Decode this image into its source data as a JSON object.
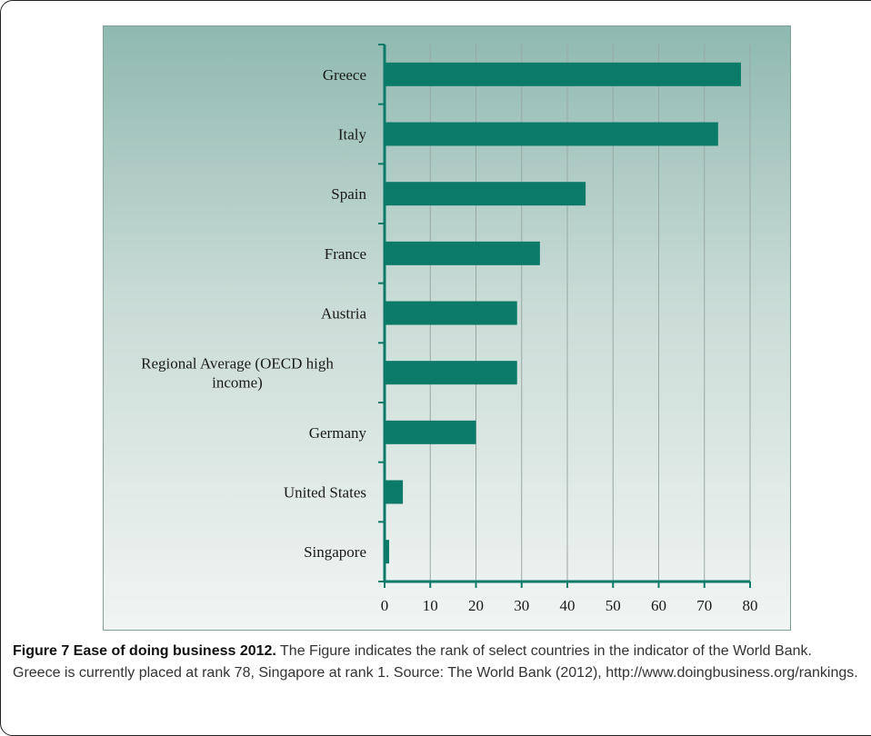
{
  "chart_data": {
    "type": "bar",
    "orientation": "horizontal",
    "categories": [
      "Greece",
      "Italy",
      "Spain",
      "France",
      "Austria",
      "Regional Average (OECD high income)",
      "Germany",
      "United States",
      "Singapore"
    ],
    "category_lines": [
      [
        "Greece"
      ],
      [
        "Italy"
      ],
      [
        "Spain"
      ],
      [
        "France"
      ],
      [
        "Austria"
      ],
      [
        "Regional Average (OECD high",
        "income)"
      ],
      [
        "Germany"
      ],
      [
        "United States"
      ],
      [
        "Singapore"
      ]
    ],
    "values": [
      78,
      73,
      44,
      34,
      29,
      29,
      20,
      4,
      1
    ],
    "xlim": [
      0,
      80
    ],
    "xticks": [
      0,
      10,
      20,
      30,
      40,
      50,
      60,
      70,
      80
    ],
    "grid": true,
    "bar_color": "#0b7a68",
    "axis_color": "#0b7a68",
    "title": "",
    "xlabel": "",
    "ylabel": ""
  },
  "caption": {
    "label": "Figure 7 Ease of doing business 2012.",
    "text": " The Figure indicates the rank of select countries in the indicator of the World Bank. Greece is currently placed at rank 78, Singapore at rank 1. Source: The World Bank (2012), http://www.doingbusiness.org/rankings."
  }
}
